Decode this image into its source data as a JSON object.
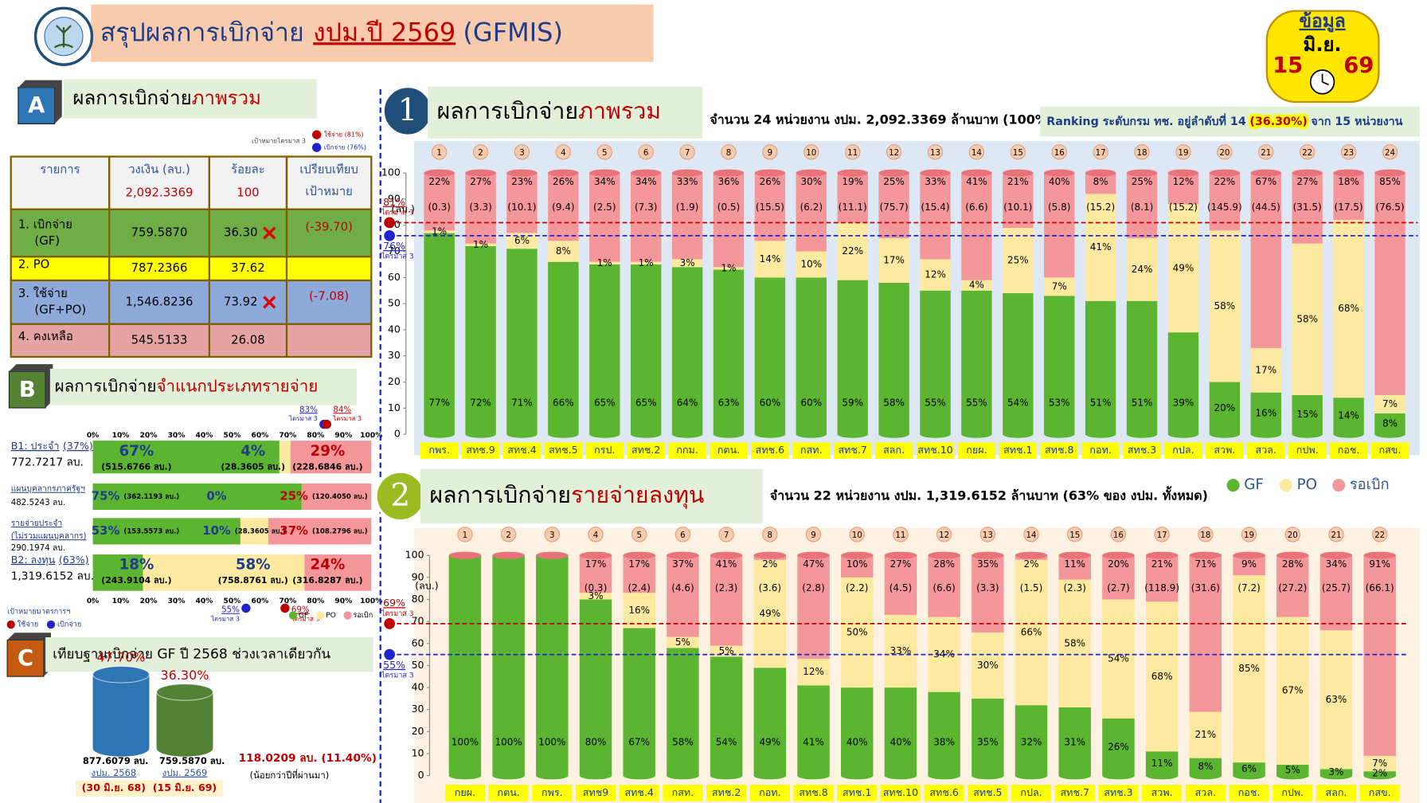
{
  "header": {
    "title_prefix": "สรุปผลการเบิกจ่าย",
    "title_highlight": "งปม.ปี 2569",
    "title_suffix": "(GFMIS)",
    "date_badge": {
      "label": "ข้อมูล",
      "month": "มิ.ย.",
      "day": "15",
      "year": "69"
    }
  },
  "section_a": {
    "letter": "A",
    "title": "ผลการเบิกจ่าย",
    "title_highlight": "ภาพรวม",
    "legend": {
      "title": "เป้าหมายไตรมาส 3",
      "items": [
        {
          "label": "ใช้จ่าย (81%)",
          "color": "#c00000"
        },
        {
          "label": "เบิกจ่าย (76%)",
          "color": "#2222cc"
        }
      ]
    },
    "table": {
      "headers": [
        [
          "รายการ"
        ],
        [
          "วงเงิน (ลบ.)"
        ],
        [
          "ร้อยละ"
        ],
        [
          "เปรียบเทียบ",
          "เป้าหมาย"
        ]
      ],
      "totals": [
        "2,092.3369",
        "100"
      ],
      "rows": [
        {
          "item": [
            "1. เบิกจ่าย",
            "(GF)"
          ],
          "amount": "759.5870",
          "percent": "36.30",
          "compare": "(-39.70)",
          "off_target": true,
          "color": "#70ad47"
        },
        {
          "item": [
            "2. PO"
          ],
          "amount": "787.2366",
          "percent": "37.62",
          "color": "#ffff00"
        },
        {
          "item": [
            "3. ใช้จ่าย",
            "(GF+PO)"
          ],
          "amount": "1,546.8236",
          "percent": "73.92",
          "compare": "(-7.08)",
          "off_target": true,
          "color": "#8eaadb"
        },
        {
          "item": [
            "4. คงเหลือ"
          ],
          "amount": "545.5133",
          "percent": "26.08",
          "color": "#e6a3a3"
        }
      ]
    }
  },
  "section_b": {
    "letter": "B",
    "title": "ผลการเบิกจ่าย",
    "title_highlight": "จำแนกประเภทรายจ่าย",
    "axis_ticks": [
      {
        "value": 0,
        "label": "0%"
      },
      {
        "value": 10,
        "label": "10%"
      },
      {
        "value": 20,
        "label": "20%"
      },
      {
        "value": 30,
        "label": "30%"
      },
      {
        "value": 40,
        "label": "40%"
      },
      {
        "value": 50,
        "label": "50%"
      },
      {
        "value": 60,
        "label": "60%"
      },
      {
        "value": 70,
        "label": "70%"
      },
      {
        "value": 80,
        "label": "80%"
      },
      {
        "value": 90,
        "label": "90%"
      },
      {
        "value": 100,
        "label": "100%"
      }
    ],
    "top_targets": [
      {
        "value": 83,
        "label": "83%",
        "note": "ไตรมาส 3",
        "color": "#2222cc"
      },
      {
        "value": 84,
        "label": "84%",
        "note": "ไตรมาส 3",
        "color": "#c00000"
      }
    ],
    "bottom_targets": [
      {
        "value": 55,
        "label": "55%",
        "note": "ไตรมาส 3",
        "color": "#2222cc"
      },
      {
        "value": 69,
        "label": "69%",
        "note": "ไตรมาส 3",
        "color": "#c00000"
      }
    ],
    "segment_colors": [
      "#5cb531",
      "#fdeaa0",
      "#f4979a"
    ],
    "rows": [
      {
        "name": "B1: ประจำ",
        "share": "(37%)",
        "amount": "772.7217 ลบ.",
        "segments": [
          {
            "value": 67,
            "label": "67%",
            "amount": "(515.6766 ลบ.)"
          },
          {
            "value": 4,
            "label": "4%",
            "amount": "(28.3605 ลบ.)"
          },
          {
            "value": 29,
            "label": "29%",
            "amount": "(228.6846 ลบ.)"
          }
        ]
      },
      {
        "name": "แผนบุคลากรภาครัฐฯ",
        "amount": "482.5243 ลบ.",
        "segments": [
          {
            "value": 75,
            "label": "75%",
            "amount": "(362.1193 ลบ.)"
          },
          {
            "value": 0,
            "label": "0%"
          },
          {
            "value": 25,
            "label": "25%",
            "amount": "(120.4050 ลบ.)"
          }
        ]
      },
      {
        "name": "รายจ่ายประจำ",
        "name_note": "(ไม่รวมแผนบุคลากร)",
        "amount": "290.1974 ลบ.",
        "segments": [
          {
            "value": 53,
            "label": "53%",
            "amount": "(153.5573 ลบ.)"
          },
          {
            "value": 10,
            "label": "10%",
            "amount": "(28.3605 ลบ.)"
          },
          {
            "value": 37,
            "label": "37%",
            "amount": "(108.2796 ลบ.)"
          }
        ]
      },
      {
        "name": "B2: ลงทุน",
        "share": "(63%)",
        "amount": "1,319.6152 ลบ.",
        "segments": [
          {
            "value": 18,
            "label": "18%",
            "amount": "(243.9104 ลบ.)"
          },
          {
            "value": 58,
            "label": "58%",
            "amount": "(758.8761 ลบ.)"
          },
          {
            "value": 24,
            "label": "24%",
            "amount": "(316.8287 ลบ.)"
          }
        ]
      }
    ],
    "legend": [
      "GF",
      "PO",
      "รอเบิก"
    ],
    "target_legend": {
      "title": "เป้าหมายมาตรการฯ",
      "items": [
        {
          "label": "ใช้จ่าย",
          "color": "#c00000"
        },
        {
          "label": "เบิกจ่าย",
          "color": "#2222cc"
        }
      ]
    }
  },
  "section_c": {
    "letter": "C",
    "title": "เทียบฐานเบิกจ่าย GF ปี 2568 ช่วงเวลาเดียวกัน",
    "bars": [
      {
        "value": 47.7,
        "label": "47.70%",
        "amount": "877.6079 ลบ.",
        "budget": "งปม. 2568",
        "date": "(30 มิ.ย. 68)",
        "color": "#2e75b6"
      },
      {
        "value": 36.3,
        "label": "36.30%",
        "amount": "759.5870 ลบ.",
        "budget": "งปม. 2569",
        "date": "(15 มิ.ย. 69)",
        "color": "#548235"
      }
    ],
    "difference": "118.0209 ลบ. (11.40%)",
    "difference_note": "(น้อยกว่าปีที่ผ่านมา)"
  },
  "chart_data": [
    {
      "type": "bar",
      "stacked": true,
      "number": "1",
      "title": "ผลการเบิกจ่าย",
      "title_highlight": "ภาพรวม",
      "subtitle": "จำนวน 24 หน่วยงาน งปม. 2,092.3369 ล้านบาท (100%)",
      "ranking_prefix": "Ranking ระดับกรม ทช. อยู่ลำดับที่ 14",
      "ranking_highlight": "(36.30%)",
      "ranking_suffix": "จาก 15 หน่วยงาน",
      "y_label": "(ลบ.)",
      "ranks": [
        1,
        2,
        3,
        4,
        5,
        6,
        7,
        8,
        9,
        10,
        11,
        12,
        13,
        14,
        15,
        16,
        17,
        18,
        19,
        20,
        21,
        22,
        23,
        24
      ],
      "categories": [
        "กพร.",
        "สทช.9",
        "สทช.4",
        "สทช.5",
        "กรป.",
        "สทช.2",
        "กกม.",
        "กตน.",
        "สทช.6",
        "กสท.",
        "สทช.7",
        "สลก.",
        "สทช.10",
        "กยผ.",
        "สทช.1",
        "สทช.8",
        "กอท.",
        "สทช.3",
        "กปล.",
        "สวพ.",
        "สวล.",
        "กปพ.",
        "กอช.",
        "กสข."
      ],
      "series": [
        {
          "color": "#5cb531",
          "values": [
            77,
            72,
            71,
            66,
            65,
            65,
            64,
            63,
            60,
            60,
            59,
            58,
            55,
            55,
            54,
            53,
            51,
            51,
            39,
            20,
            16,
            15,
            14,
            8
          ],
          "value_labels": [
            "77%",
            "72%",
            "71%",
            "66%",
            "65%",
            "65%",
            "64%",
            "63%",
            "60%",
            "60%",
            "59%",
            "58%",
            "55%",
            "55%",
            "54%",
            "53%",
            "51%",
            "51%",
            "39%",
            "20%",
            "16%",
            "15%",
            "14%",
            "8%"
          ]
        },
        {
          "color": "#fdeaa0",
          "values": [
            1,
            1,
            6,
            8,
            1,
            1,
            3,
            1,
            14,
            10,
            22,
            17,
            12,
            4,
            25,
            7,
            41,
            24,
            49,
            58,
            17,
            58,
            68,
            7
          ],
          "value_labels": [
            "1%",
            "1%",
            "6%",
            "8%",
            "1%",
            "1%",
            "3%",
            "1%",
            "14%",
            "10%",
            "22%",
            "17%",
            "12%",
            "4%",
            "25%",
            "7%",
            "41%",
            "24%",
            "49%",
            "58%",
            "17%",
            "58%",
            "68%",
            "7%"
          ]
        },
        {
          "color": "#f4979a",
          "values": [
            22,
            27,
            23,
            26,
            34,
            34,
            33,
            36,
            26,
            30,
            19,
            25,
            33,
            41,
            21,
            40,
            8,
            25,
            12,
            22,
            67,
            27,
            18,
            85
          ],
          "value_labels": [
            "22%",
            "27%",
            "23%",
            "26%",
            "34%",
            "34%",
            "33%",
            "36%",
            "26%",
            "30%",
            "19%",
            "25%",
            "33%",
            "41%",
            "21%",
            "40%",
            "8%",
            "25%",
            "12%",
            "22%",
            "67%",
            "27%",
            "18%",
            "85%"
          ],
          "amount_labels": [
            "(0.3)",
            "(3.3)",
            "(10.1)",
            "(9.4)",
            "(2.5)",
            "(7.3)",
            "(1.9)",
            "(0.5)",
            "(15.5)",
            "(6.2)",
            "(11.1)",
            "(75.7)",
            "(15.4)",
            "(6.6)",
            "(10.1)",
            "(5.8)",
            "(15.2)",
            "(8.1)",
            "(15.2)",
            "(145.9)",
            "(44.5)",
            "(31.5)",
            "(17.5)",
            "(76.5)"
          ]
        }
      ],
      "ylim": [
        0,
        100
      ],
      "yticks": [
        0,
        10,
        20,
        30,
        40,
        50,
        60,
        70,
        80,
        90,
        100
      ],
      "targets": [
        {
          "value": 81,
          "label": "81%",
          "note": "ไตรมาส 3",
          "color": "#c00000"
        },
        {
          "value": 76,
          "label": "76%",
          "note": "ไตรมาส 3",
          "color": "#2222cc"
        }
      ]
    },
    {
      "type": "bar",
      "stacked": true,
      "number": "2",
      "title": "ผลการเบิกจ่าย",
      "title_highlight": "รายจ่ายลงทุน",
      "subtitle": "จำนวน 22 หน่วยงาน งปม. 1,319.6152 ล้านบาท (63% ของ งปม. ทั้งหมด)",
      "y_label": "(ลบ.)",
      "ranks": [
        1,
        2,
        3,
        4,
        5,
        6,
        7,
        8,
        9,
        10,
        11,
        12,
        13,
        14,
        15,
        16,
        17,
        18,
        19,
        20,
        21,
        22
      ],
      "categories": [
        "กยผ.",
        "กตน.",
        "กพร.",
        "สทช9",
        "สทช.4",
        "กสท.",
        "สทช.2",
        "กอท.",
        "สทช.8",
        "สทช.1",
        "สทช.10",
        "สทช.6",
        "สทช.5",
        "กปล.",
        "สทช.7",
        "สทช.3",
        "สวพ.",
        "สวล.",
        "กอช.",
        "กปพ.",
        "สลก.",
        "กสข."
      ],
      "series": [
        {
          "name": "GF",
          "color": "#5cb531",
          "values": [
            100,
            100,
            100,
            80,
            67,
            58,
            54,
            49,
            41,
            40,
            40,
            38,
            35,
            32,
            31,
            26,
            11,
            8,
            6,
            5,
            3,
            2
          ],
          "value_labels": [
            "100%",
            "100%",
            "100%",
            "80%",
            "67%",
            "58%",
            "54%",
            "49%",
            "41%",
            "40%",
            "40%",
            "38%",
            "35%",
            "32%",
            "31%",
            "26%",
            "11%",
            "8%",
            "6%",
            "5%",
            "3%",
            "2%"
          ]
        },
        {
          "name": "PO",
          "color": "#fdeaa0",
          "values": [
            0,
            0,
            0,
            3,
            16,
            5,
            5,
            49,
            12,
            50,
            33,
            34,
            30,
            66,
            58,
            54,
            68,
            21,
            85,
            67,
            63,
            7
          ],
          "value_labels": [
            null,
            null,
            null,
            "3%",
            "16%",
            "5%",
            "5%",
            "49%",
            "12%",
            "50%",
            "33%",
            "34%",
            "30%",
            "66%",
            "58%",
            "54%",
            "68%",
            "21%",
            "85%",
            "67%",
            "63%",
            "7%"
          ]
        },
        {
          "name": "รอเบิก",
          "color": "#f4979a",
          "values": [
            0,
            0,
            0,
            17,
            17,
            37,
            41,
            2,
            47,
            10,
            27,
            28,
            35,
            2,
            11,
            20,
            21,
            71,
            9,
            28,
            34,
            91
          ],
          "value_labels": [
            null,
            null,
            null,
            "17%",
            "17%",
            "37%",
            "41%",
            "2%",
            "47%",
            "10%",
            "27%",
            "28%",
            "35%",
            "2%",
            "11%",
            "20%",
            "21%",
            "71%",
            "9%",
            "28%",
            "34%",
            "91%"
          ],
          "amount_labels": [
            null,
            null,
            null,
            "(0.3)",
            "(2.4)",
            "(4.6)",
            "(2.3)",
            "(3.6)",
            "(2.8)",
            "(2.2)",
            "(4.5)",
            "(6.6)",
            "(3.3)",
            "(1.5)",
            "(2.3)",
            "(2.7)",
            "(118.9)",
            "(31.6)",
            "(7.2)",
            "(27.2)",
            "(25.7)",
            "(66.1)"
          ]
        }
      ],
      "legend": true,
      "ylim": [
        0,
        100
      ],
      "yticks": [
        0,
        10,
        20,
        30,
        40,
        50,
        60,
        70,
        80,
        90,
        100
      ],
      "targets": [
        {
          "value": 69,
          "label": "69%",
          "note": "ไตรมาส 3",
          "color": "#c00000"
        },
        {
          "value": 55,
          "label": "55%",
          "note": "ไตรมาส 3",
          "color": "#2222cc"
        }
      ]
    }
  ]
}
